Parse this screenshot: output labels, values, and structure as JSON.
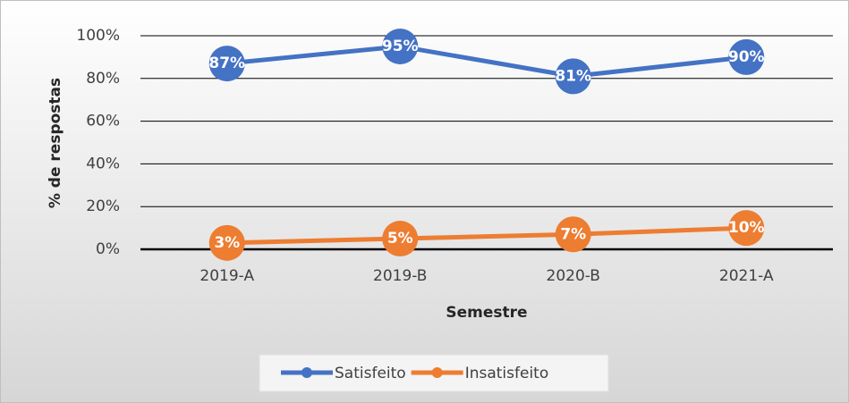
{
  "chart_data": {
    "type": "line",
    "x_label": "Semestre",
    "y_label": "% de respostas",
    "categories": [
      "2019-A",
      "2019-B",
      "2020-B",
      "2021-A"
    ],
    "series": [
      {
        "name": "Satisfeito",
        "color": "#4472c4",
        "values": [
          87,
          95,
          81,
          90
        ],
        "value_labels": [
          "87%",
          "95%",
          "81%",
          "90%"
        ]
      },
      {
        "name": "Insatisfeito",
        "color": "#ed7d31",
        "values": [
          3,
          5,
          7,
          10
        ],
        "value_labels": [
          "3%",
          "5%",
          "7%",
          "10%"
        ]
      }
    ],
    "ylim": [
      0,
      100
    ],
    "yticks": [
      {
        "value": 0,
        "label": "0%"
      },
      {
        "value": 20,
        "label": "20%"
      },
      {
        "value": 40,
        "label": "40%"
      },
      {
        "value": 60,
        "label": "60%"
      },
      {
        "value": 80,
        "label": "80%"
      },
      {
        "value": 100,
        "label": "100%"
      }
    ],
    "grid": true,
    "legend": "bottom"
  }
}
